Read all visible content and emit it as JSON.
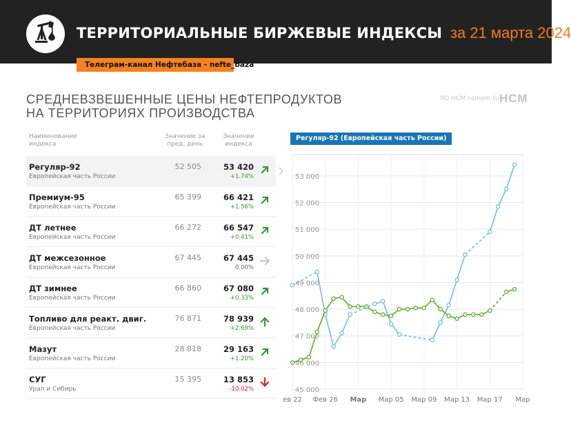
{
  "header": {
    "title_bold": "ТЕРРИТОРИАЛЬНЫЕ БИРЖЕВЫЕ ИНДЕКСЫ",
    "title_date": "за 21 марта 2024",
    "telegram_badge": "Телеграм-канал Нефтебаза - nefte_baza",
    "logo_icon": "oil-pump-icon"
  },
  "subtitle": {
    "line1": "СРЕДНЕВЗВЕШЕННЫЕ ЦЕНЫ НЕФТЕПРОДУКТОВ",
    "line2": "НА ТЕРРИТОРИЯХ ПРОИЗВОДСТВА"
  },
  "source": {
    "faint": "ЯО НСМ  nsmom.ru",
    "brand": "НСМ"
  },
  "table": {
    "col_name_l1": "Наименование",
    "col_name_l2": "индекса",
    "col_prev_l1": "Значение за",
    "col_prev_l2": "пред. день",
    "col_cur_l1": "Значение",
    "col_cur_l2": "индекса",
    "rows": [
      {
        "name": "Регуляр-92",
        "region": "Европейская часть России",
        "prev": "52 505",
        "cur": "53 420",
        "change": "+1.74%",
        "trend": "up"
      },
      {
        "name": "Премиум-95",
        "region": "Европейская часть России",
        "prev": "65 399",
        "cur": "66 421",
        "change": "+1.56%",
        "trend": "up"
      },
      {
        "name": "ДТ летнее",
        "region": "Европейская часть России",
        "prev": "66 272",
        "cur": "66 547",
        "change": "+0.41%",
        "trend": "up"
      },
      {
        "name": "ДТ межсезонное",
        "region": "Европейская часть России",
        "prev": "67 445",
        "cur": "67 445",
        "change": "0.00%",
        "trend": "flat"
      },
      {
        "name": "ДТ зимнее",
        "region": "Европейская часть России",
        "prev": "66 860",
        "cur": "67 080",
        "change": "+0.33%",
        "trend": "up"
      },
      {
        "name": "Топливо для реакт. двиг.",
        "region": "Европейская часть России",
        "prev": "76 871",
        "cur": "78 939",
        "change": "+2.69%",
        "trend": "up-strong"
      },
      {
        "name": "Мазут",
        "region": "Европейская часть России",
        "prev": "28 818",
        "cur": "29 163",
        "change": "+1.20%",
        "trend": "up"
      },
      {
        "name": "СУГ",
        "region": "Урал и Сибирь",
        "prev": "15 395",
        "cur": "13 853",
        "change": "-10.02%",
        "trend": "down"
      }
    ]
  },
  "colors": {
    "accent": "#f58220",
    "brand_blue": "#1a75b5",
    "up": "#2e9a2e",
    "down": "#e02020",
    "flat": "#c8c8c8",
    "series_blue": "#7dc2e6",
    "series_green": "#6bb33c"
  },
  "chart_data": {
    "type": "line",
    "title": "Регуляр-92 (Европейская часть России)",
    "ylim": [
      45000,
      53800
    ],
    "yticks": [
      "45 000",
      "46 000",
      "47 000",
      "48 000",
      "49 000",
      "50 000",
      "51 000",
      "52 000",
      "53 000"
    ],
    "xticks": [
      {
        "label": "ев 22",
        "x": "2024-02-22"
      },
      {
        "label": "Фев 26",
        "x": "2024-02-26"
      },
      {
        "label": "Мар",
        "x": "2024-03-01",
        "bold": true
      },
      {
        "label": "Мар 05",
        "x": "2024-03-05"
      },
      {
        "label": "Мар 09",
        "x": "2024-03-09"
      },
      {
        "label": "Мар 13",
        "x": "2024-03-13"
      },
      {
        "label": "Мар 17",
        "x": "2024-03-17"
      },
      {
        "label": "Мар",
        "x": "2024-03-21"
      }
    ],
    "xlim": [
      "2024-02-22",
      "2024-03-21"
    ],
    "grid": true,
    "series": [
      {
        "color": "#7dc2e6",
        "points": [
          {
            "x": "2024-02-22",
            "y": 48900
          },
          {
            "x": "2024-02-25",
            "y": 49400,
            "gap_before": true
          },
          {
            "x": "2024-02-26",
            "y": 47800
          },
          {
            "x": "2024-02-27",
            "y": 46600
          },
          {
            "x": "2024-02-28",
            "y": 47100
          },
          {
            "x": "2024-02-29",
            "y": 47800
          },
          {
            "x": "2024-03-03",
            "y": 48200,
            "gap_before": true
          },
          {
            "x": "2024-03-04",
            "y": 48300
          },
          {
            "x": "2024-03-05",
            "y": 47450
          },
          {
            "x": "2024-03-06",
            "y": 47050
          },
          {
            "x": "2024-03-10",
            "y": 46850,
            "gap_before": true
          },
          {
            "x": "2024-03-11",
            "y": 47500
          },
          {
            "x": "2024-03-12",
            "y": 48150
          },
          {
            "x": "2024-03-13",
            "y": 49100
          },
          {
            "x": "2024-03-14",
            "y": 50050
          },
          {
            "x": "2024-03-17",
            "y": 50900,
            "gap_before": true
          },
          {
            "x": "2024-03-18",
            "y": 51850
          },
          {
            "x": "2024-03-19",
            "y": 52505
          },
          {
            "x": "2024-03-20",
            "y": 53420
          }
        ]
      },
      {
        "color": "#6bb33c",
        "points": [
          {
            "x": "2024-02-22",
            "y": 46000
          },
          {
            "x": "2024-02-23",
            "y": 46100
          },
          {
            "x": "2024-02-24",
            "y": 46200
          },
          {
            "x": "2024-02-25",
            "y": 47150
          },
          {
            "x": "2024-02-26",
            "y": 47950
          },
          {
            "x": "2024-02-27",
            "y": 48400
          },
          {
            "x": "2024-02-28",
            "y": 48450
          },
          {
            "x": "2024-02-29",
            "y": 48100
          },
          {
            "x": "2024-03-01",
            "y": 48100
          },
          {
            "x": "2024-03-02",
            "y": 48100
          },
          {
            "x": "2024-03-03",
            "y": 47900
          },
          {
            "x": "2024-03-04",
            "y": 47800
          },
          {
            "x": "2024-03-05",
            "y": 47750
          },
          {
            "x": "2024-03-06",
            "y": 48000
          },
          {
            "x": "2024-03-07",
            "y": 48000
          },
          {
            "x": "2024-03-08",
            "y": 48050
          },
          {
            "x": "2024-03-09",
            "y": 48050
          },
          {
            "x": "2024-03-10",
            "y": 48350
          },
          {
            "x": "2024-03-11",
            "y": 48000
          },
          {
            "x": "2024-03-12",
            "y": 47750
          },
          {
            "x": "2024-03-13",
            "y": 47650
          },
          {
            "x": "2024-03-14",
            "y": 47800
          },
          {
            "x": "2024-03-15",
            "y": 47800
          },
          {
            "x": "2024-03-16",
            "y": 47800
          },
          {
            "x": "2024-03-17",
            "y": 47950
          },
          {
            "x": "2024-03-19",
            "y": 48650,
            "gap_before": true
          },
          {
            "x": "2024-03-20",
            "y": 48750
          }
        ]
      }
    ]
  }
}
